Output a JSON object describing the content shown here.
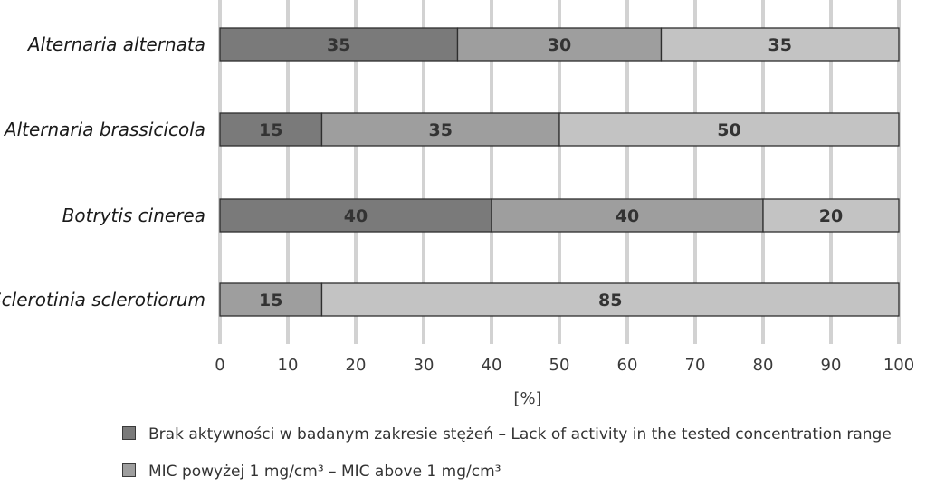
{
  "chart_data": {
    "type": "bar",
    "orientation": "horizontal",
    "stacked": true,
    "categories": [
      "Alternaria alternata",
      "Alternaria brassicicola",
      "Botrytis cinerea",
      "Sclerotinia sclerotiorum"
    ],
    "series": [
      {
        "name": "Brak aktywności w badanym zakresie stężeń – Lack of activity in the tested concentration range",
        "color": "#7a7a7a",
        "values": [
          35,
          15,
          40,
          0
        ]
      },
      {
        "name": "MIC powyżej 1 mg/cm³ – MIC above 1 mg/cm³",
        "color": "#9e9e9e",
        "values": [
          30,
          35,
          40,
          15
        ]
      },
      {
        "name": "",
        "color": "#c3c3c3",
        "values": [
          35,
          50,
          20,
          85
        ]
      }
    ],
    "xlabel": "[%]",
    "xlim": [
      0,
      100
    ],
    "xticks": [
      0,
      10,
      20,
      30,
      40,
      50,
      60,
      70,
      80,
      90,
      100
    ],
    "grid": "vertical",
    "legend_position": "bottom",
    "title": ""
  },
  "legend": {
    "items": [
      {
        "label": "Brak aktywności w badanym zakresie stężeń – Lack of activity in the tested concentration range",
        "color": "#7a7a7a"
      },
      {
        "label": "MIC powyżej 1 mg/cm³ – MIC above 1 mg/cm³",
        "color": "#9e9e9e"
      }
    ]
  }
}
